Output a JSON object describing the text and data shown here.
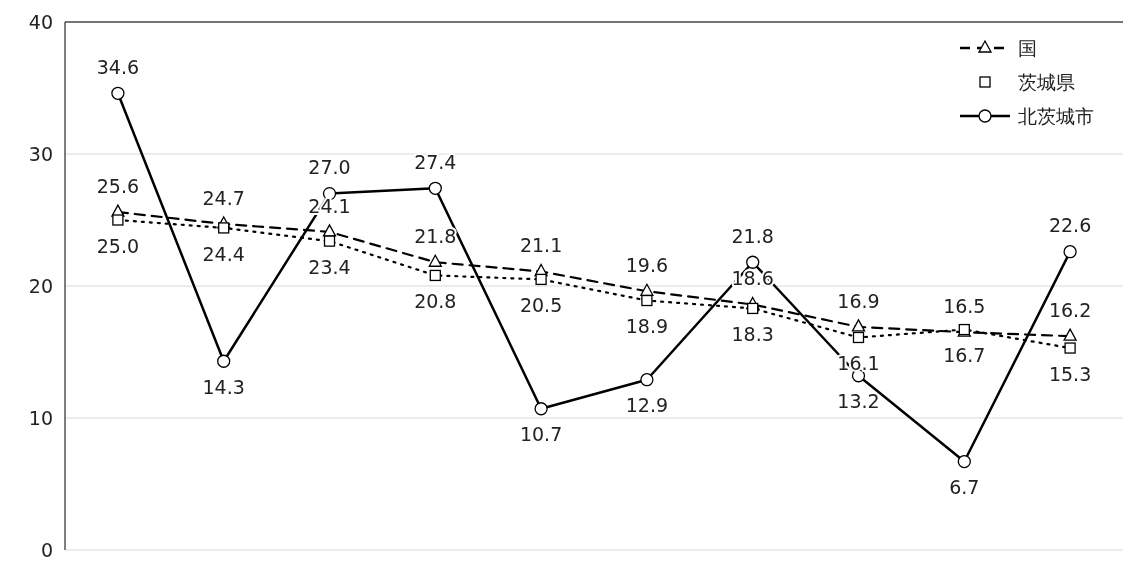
{
  "chart_data": {
    "type": "line",
    "categories": [
      null,
      null,
      null,
      null,
      null,
      null,
      null,
      null,
      null,
      null
    ],
    "series": [
      {
        "name": "国",
        "color": "#000000",
        "line_style": "dashed",
        "marker": "triangle",
        "values": [
          25.6,
          24.7,
          24.1,
          21.8,
          21.1,
          19.6,
          18.6,
          16.9,
          16.5,
          16.2
        ],
        "value_labels": [
          "25.6",
          "24.7",
          "24.1",
          "21.8",
          "21.1",
          "19.6",
          "18.6",
          "16.9",
          "16.5",
          "16.2"
        ]
      },
      {
        "name": "茨城県",
        "color": "#000000",
        "line_style": "dotted",
        "marker": "square",
        "values": [
          25.0,
          24.4,
          23.4,
          20.8,
          20.5,
          18.9,
          18.3,
          16.1,
          16.7,
          15.3
        ],
        "value_labels": [
          "25.0",
          "24.4",
          "23.4",
          "20.8",
          "20.5",
          "18.9",
          "18.3",
          "16.1",
          "16.7",
          "15.3"
        ]
      },
      {
        "name": "北茨城市",
        "color": "#000000",
        "line_style": "solid",
        "marker": "circle",
        "values": [
          34.6,
          14.3,
          27.0,
          27.4,
          10.7,
          12.9,
          21.8,
          13.2,
          6.7,
          22.6
        ],
        "value_labels": [
          "34.6",
          "14.3",
          "27.0",
          "27.4",
          "10.7",
          "12.9",
          "21.8",
          "13.2",
          "6.7",
          "22.6"
        ]
      }
    ],
    "ylim": [
      0,
      40
    ],
    "yticks": [
      0,
      10,
      20,
      30,
      40
    ],
    "grid": "y",
    "legend": "top right"
  }
}
